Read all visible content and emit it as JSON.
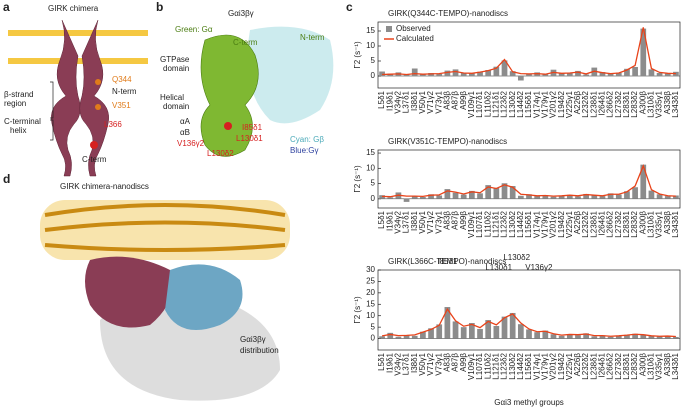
{
  "panels": {
    "a": {
      "letter": "a",
      "title": "GIRK chimera",
      "labels": [
        "Q344",
        "N-term",
        "V351",
        "L366",
        "C-term",
        "β-strand",
        "region",
        "C-terminal",
        "helix"
      ]
    },
    "b": {
      "letter": "b",
      "title": "Gαi3βγ",
      "labels": [
        "Green: Gα",
        "C-term",
        "N-term",
        "GTPase",
        "domain",
        "Helical",
        "domain",
        "αA",
        "αB",
        "I85δ1",
        "L130δ1",
        "V136γ2",
        "L130δ2",
        "Cyan: Gβ",
        "Blue:Gγ"
      ]
    },
    "c": {
      "letter": "c"
    },
    "d": {
      "letter": "d",
      "title": "GIRK chimera-nanodiscs",
      "labels": [
        "Gαi3βγ",
        "distribution"
      ]
    }
  },
  "chart_data": [
    {
      "type": "bar",
      "title": "GIRK(Q344C-TEMPO)-nanodiscs",
      "ylabel": "Γ2 (s⁻¹)",
      "legend": "upper left",
      "categories": [
        "L5δ1",
        "I19δ1",
        "V34γ2",
        "L37δ1",
        "I38δ1",
        "V50γ1",
        "V71γ2",
        "V73γ1",
        "A83β",
        "A87β",
        "A99β",
        "V109γ1",
        "L107δ1",
        "L110δ2",
        "L121δ1",
        "L123δ2",
        "L130δ2",
        "L144δ2",
        "L156δ1",
        "V174γ1",
        "V179γ1",
        "V201γ2",
        "L194δ2",
        "V225γ1",
        "A226β",
        "L232δ2",
        "L238δ1",
        "I264δ1",
        "L266δ2",
        "L273δ2",
        "L283δ1",
        "L283δ2",
        "A300β",
        "L310δ1",
        "V335γ1",
        "A338β",
        "L343δ1"
      ],
      "series": [
        {
          "name": "Observed",
          "color": "#8c8c8c",
          "values": [
            1.5,
            0.8,
            1.2,
            0.5,
            2.5,
            0.6,
            1.0,
            0.7,
            1.8,
            2.2,
            1.1,
            0.9,
            1.4,
            2.0,
            3.1,
            5.2,
            1.6,
            -1.5,
            0.8,
            1.2,
            0.6,
            2.1,
            0.9,
            1.0,
            1.7,
            0.5,
            2.8,
            1.3,
            0.7,
            1.1,
            2.4,
            3.0,
            15.8,
            2.2,
            1.0,
            0.8,
            1.4
          ]
        },
        {
          "name": "Calculated",
          "color": "#e8431a",
          "values": [
            0.5,
            0.6,
            0.7,
            0.5,
            0.8,
            0.6,
            0.7,
            0.8,
            1.2,
            1.5,
            1.0,
            0.9,
            1.3,
            1.8,
            2.6,
            5.5,
            1.4,
            0.8,
            0.7,
            0.8,
            0.6,
            1.2,
            0.9,
            1.0,
            1.3,
            0.7,
            1.6,
            1.1,
            0.8,
            1.0,
            2.0,
            3.5,
            16.2,
            2.5,
            1.2,
            0.9,
            0.8
          ]
        }
      ],
      "ylim": [
        -4,
        18
      ],
      "yticks": [
        0,
        5,
        10,
        15
      ]
    },
    {
      "type": "bar",
      "title": "GIRK(V351C-TEMPO)-nanodiscs",
      "ylabel": "Γ2 (s⁻¹)",
      "categories": [
        "L5δ1",
        "I19δ1",
        "V34γ2",
        "L37δ1",
        "I38δ1",
        "V50γ1",
        "V71γ2",
        "V73γ1",
        "A83β",
        "A87β",
        "A99β",
        "V109γ1",
        "L107δ1",
        "L110δ2",
        "L121δ1",
        "L123δ2",
        "L130δ2",
        "L144δ2",
        "L156δ1",
        "V174γ1",
        "V179γ1",
        "V201γ2",
        "L194δ2",
        "V225γ1",
        "A226β",
        "L232δ2",
        "L238δ1",
        "I264δ1",
        "L266δ2",
        "L273δ2",
        "L283δ1",
        "L283δ2",
        "A300β",
        "L310δ1",
        "V335γ1",
        "A338β",
        "L343δ1"
      ],
      "series": [
        {
          "name": "Observed",
          "color": "#8c8c8c",
          "values": [
            1.2,
            0.5,
            2.1,
            -1.0,
            0.8,
            0.6,
            1.5,
            1.1,
            3.2,
            2.0,
            1.4,
            2.6,
            1.8,
            4.5,
            3.6,
            5.1,
            4.2,
            1.0,
            1.5,
            0.9,
            1.2,
            0.7,
            1.0,
            1.3,
            0.8,
            1.6,
            1.1,
            0.9,
            1.8,
            1.4,
            2.5,
            3.8,
            11.2,
            2.7,
            1.5,
            0.9,
            1.1
          ]
        },
        {
          "name": "Calculated",
          "color": "#e8431a",
          "values": [
            0.8,
            0.7,
            1.2,
            0.9,
            0.9,
            0.8,
            1.2,
            1.3,
            2.6,
            2.2,
            1.6,
            2.3,
            2.0,
            3.9,
            3.4,
            4.6,
            3.8,
            1.5,
            1.3,
            1.0,
            1.1,
            0.9,
            1.0,
            1.2,
            1.0,
            1.4,
            1.2,
            1.0,
            1.5,
            1.5,
            2.3,
            4.2,
            10.8,
            3.0,
            1.6,
            1.0,
            0.9
          ]
        }
      ],
      "ylim": [
        -3,
        16
      ],
      "yticks": [
        0,
        5,
        10,
        15
      ]
    },
    {
      "type": "bar",
      "title": "GIRK(L366C-TEMPO)-nanodiscs",
      "ylabel": "Γ2 (s⁻¹)",
      "xlabel": "Gαi3 methyl groups",
      "categories": [
        "L5δ1",
        "I19δ1",
        "V34γ2",
        "L37δ1",
        "I38δ1",
        "V50γ1",
        "V71γ2",
        "V73γ1",
        "A83β",
        "A87β",
        "A99β",
        "V109γ1",
        "L107δ1",
        "L110δ2",
        "L121δ1",
        "L123δ2",
        "L130δ2",
        "L144δ2",
        "L156δ1",
        "V174γ1",
        "V179γ1",
        "V201γ2",
        "L194δ2",
        "V225γ1",
        "A226β",
        "L232δ2",
        "L238δ1",
        "I264δ1",
        "L266δ2",
        "L273δ2",
        "L283δ1",
        "L283δ2",
        "A300β",
        "L310δ1",
        "V335γ1",
        "A338β",
        "L343δ1"
      ],
      "series": [
        {
          "name": "Observed",
          "color": "#8c8c8c",
          "values": [
            1.0,
            2.5,
            0.8,
            1.5,
            1.2,
            3.0,
            4.5,
            6.2,
            13.8,
            7.5,
            5.0,
            6.8,
            4.2,
            8.1,
            5.5,
            9.6,
            11.2,
            6.3,
            4.0,
            2.8,
            3.5,
            1.9,
            1.2,
            2.0,
            1.5,
            2.3,
            1.0,
            1.4,
            0.8,
            1.2,
            1.6,
            2.1,
            1.8,
            1.1,
            0.9,
            1.3,
            0.7
          ]
        },
        {
          "name": "Calculated",
          "color": "#e8431a",
          "values": [
            1.2,
            1.8,
            1.3,
            1.4,
            1.6,
            2.8,
            4.0,
            5.8,
            12.9,
            7.8,
            5.4,
            6.2,
            4.8,
            7.5,
            6.0,
            9.1,
            10.8,
            6.8,
            4.2,
            3.0,
            3.2,
            2.1,
            1.5,
            1.8,
            1.7,
            2.0,
            1.3,
            1.3,
            1.0,
            1.2,
            1.5,
            1.9,
            1.7,
            1.2,
            1.0,
            1.1,
            0.9
          ]
        }
      ],
      "annotations": [
        "I85δ1",
        "L130δ1",
        "L130δ2",
        "V136γ2"
      ],
      "ylim": [
        -5,
        30
      ],
      "yticks": [
        0,
        5,
        10,
        15,
        20,
        25,
        30
      ]
    }
  ]
}
